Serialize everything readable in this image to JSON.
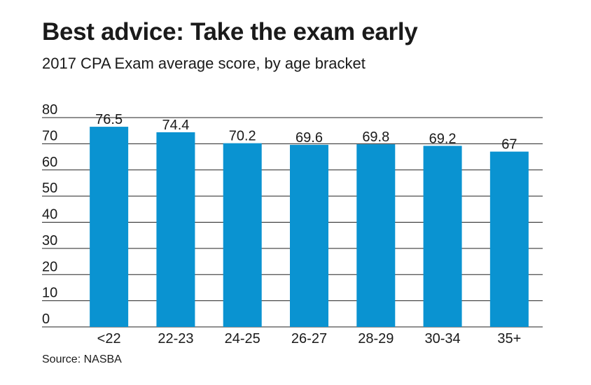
{
  "title": "Best advice: Take the exam early",
  "subtitle": "2017 CPA Exam average score, by age bracket",
  "source": "Source: NASBA",
  "chart_data": {
    "type": "bar",
    "categories": [
      "<22",
      "22-23",
      "24-25",
      "26-27",
      "28-29",
      "30-34",
      "35+"
    ],
    "values": [
      76.5,
      74.4,
      70.2,
      69.6,
      69.8,
      69.2,
      67
    ],
    "data_labels": [
      "76.5",
      "74.4",
      "70.2",
      "69.6",
      "69.8",
      "69.2",
      "67"
    ],
    "title": "Best advice: Take the exam early",
    "subtitle": "2017 CPA Exam average score, by age bracket",
    "xlabel": "",
    "ylabel": "",
    "ylim": [
      0,
      80
    ],
    "yticks": [
      0,
      10,
      20,
      30,
      40,
      50,
      60,
      70,
      80
    ],
    "grid": true,
    "bar_color": "#0a93d1",
    "grid_color": "#222222"
  }
}
